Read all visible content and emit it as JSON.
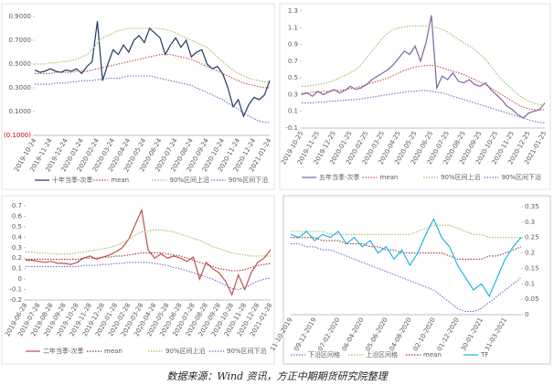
{
  "chart_data": [
    {
      "type": "line",
      "categories": [
        "2019-10-24",
        null,
        null,
        "2019-11-24",
        null,
        null,
        "2019-12-24",
        null,
        null,
        "2020-01-24",
        null,
        null,
        "2020-02-24",
        null,
        null,
        "2020-03-24",
        null,
        null,
        "2020-04-24",
        null,
        null,
        "2020-05-24",
        null,
        null,
        "2020-06-24",
        null,
        null,
        "2020-07-24",
        null,
        null,
        "2020-08-24",
        null,
        null,
        "2020-09-24",
        null,
        null,
        "2020-10-24",
        null,
        null,
        "2020-11-24",
        null,
        null,
        "2020-12-24",
        null,
        null,
        "2021-01-24"
      ],
      "ylim": [
        -0.1,
        0.9
      ],
      "yticks": [
        {
          "value": 0.9,
          "label": "0.9000"
        },
        {
          "value": 0.7,
          "label": "0.7000"
        },
        {
          "value": 0.5,
          "label": "0.5000"
        },
        {
          "value": 0.3,
          "label": "0.3000"
        },
        {
          "value": 0.1,
          "label": "0.1000"
        },
        {
          "value": -0.1,
          "label": "(0.1000)"
        }
      ],
      "negative_tick_color": "#c00000",
      "series": [
        {
          "name": "十年当季-次季",
          "color": "#1f3864",
          "style": "solid",
          "values": [
            0.45,
            0.43,
            0.44,
            0.46,
            0.44,
            0.43,
            0.45,
            0.44,
            0.46,
            0.42,
            0.48,
            0.52,
            0.86,
            0.36,
            0.5,
            0.62,
            0.58,
            0.66,
            0.6,
            0.7,
            0.74,
            0.68,
            0.8,
            0.76,
            0.72,
            0.58,
            0.66,
            0.72,
            0.64,
            0.7,
            0.56,
            0.6,
            0.62,
            0.5,
            0.46,
            0.48,
            0.42,
            0.3,
            0.14,
            0.2,
            0.06,
            0.16,
            0.22,
            0.2,
            0.24,
            0.36
          ]
        },
        {
          "name": "mean",
          "color": "#c0504d",
          "style": "dotted",
          "values": [
            0.42,
            0.42,
            0.42,
            0.42,
            0.43,
            0.43,
            0.43,
            0.43,
            0.44,
            0.44,
            0.44,
            0.45,
            0.46,
            0.47,
            0.48,
            0.49,
            0.5,
            0.51,
            0.52,
            0.53,
            0.54,
            0.55,
            0.56,
            0.57,
            0.58,
            0.58,
            0.58,
            0.57,
            0.56,
            0.55,
            0.54,
            0.52,
            0.5,
            0.48,
            0.46,
            0.44,
            0.42,
            0.4,
            0.38,
            0.36,
            0.34,
            0.33,
            0.32,
            0.31,
            0.3,
            0.3
          ]
        },
        {
          "name": "90%区间上沿",
          "color": "#9bbb59",
          "style": "dotted",
          "values": [
            0.5,
            0.5,
            0.5,
            0.51,
            0.51,
            0.52,
            0.52,
            0.53,
            0.54,
            0.56,
            0.58,
            0.62,
            0.68,
            0.72,
            0.74,
            0.76,
            0.78,
            0.79,
            0.8,
            0.8,
            0.8,
            0.8,
            0.8,
            0.8,
            0.8,
            0.79,
            0.78,
            0.76,
            0.74,
            0.72,
            0.7,
            0.68,
            0.66,
            0.64,
            0.6,
            0.56,
            0.52,
            0.48,
            0.45,
            0.42,
            0.4,
            0.38,
            0.37,
            0.36,
            0.35,
            0.35
          ]
        },
        {
          "name": "90%区间下沿",
          "color": "#7b68c8",
          "style": "dotted",
          "values": [
            0.33,
            0.33,
            0.33,
            0.33,
            0.34,
            0.34,
            0.34,
            0.35,
            0.35,
            0.36,
            0.36,
            0.36,
            0.37,
            0.37,
            0.38,
            0.38,
            0.38,
            0.39,
            0.4,
            0.4,
            0.4,
            0.4,
            0.4,
            0.39,
            0.38,
            0.37,
            0.36,
            0.35,
            0.34,
            0.33,
            0.32,
            0.3,
            0.28,
            0.26,
            0.24,
            0.22,
            0.2,
            0.17,
            0.15,
            0.12,
            0.09,
            0.06,
            0.04,
            0.02,
            0.01,
            0.01
          ]
        }
      ]
    },
    {
      "type": "line",
      "categories": [
        "2019-10-25",
        null,
        null,
        "2019-11-25",
        null,
        null,
        "2019-12-25",
        null,
        null,
        "2020-01-25",
        null,
        null,
        "2020-02-25",
        null,
        null,
        "2020-03-25",
        null,
        null,
        "2020-04-25",
        null,
        null,
        "2020-05-25",
        null,
        null,
        "2020-06-25",
        null,
        null,
        "2020-07-25",
        null,
        null,
        "2020-08-25",
        null,
        null,
        "2020-09-25",
        null,
        null,
        "2020-10-25",
        null,
        null,
        "2020-11-25",
        null,
        null,
        "2020-12-25",
        null,
        null,
        "2021-01-25"
      ],
      "ylim": [
        -0.1,
        1.3
      ],
      "yticks": [
        1.3,
        1.1,
        0.9,
        0.7,
        0.5,
        0.3,
        0.1,
        -0.1
      ],
      "series": [
        {
          "name": "五年当季-次季",
          "color": "#8064a2",
          "style": "solid",
          "values": [
            0.3,
            0.32,
            0.28,
            0.34,
            0.3,
            0.33,
            0.36,
            0.32,
            0.35,
            0.4,
            0.36,
            0.38,
            0.42,
            0.48,
            0.52,
            0.56,
            0.6,
            0.66,
            0.74,
            0.82,
            0.78,
            0.88,
            0.7,
            0.92,
            1.25,
            0.38,
            0.52,
            0.48,
            0.56,
            0.46,
            0.44,
            0.48,
            0.42,
            0.4,
            0.44,
            0.36,
            0.3,
            0.24,
            0.16,
            0.12,
            0.06,
            0.02,
            0.08,
            0.1,
            0.12,
            0.2
          ]
        },
        {
          "name": "mean",
          "color": "#c0504d",
          "style": "dotted",
          "values": [
            0.32,
            0.32,
            0.33,
            0.33,
            0.34,
            0.34,
            0.35,
            0.35,
            0.36,
            0.37,
            0.38,
            0.4,
            0.42,
            0.44,
            0.46,
            0.48,
            0.5,
            0.53,
            0.56,
            0.59,
            0.61,
            0.63,
            0.64,
            0.65,
            0.65,
            0.64,
            0.62,
            0.6,
            0.58,
            0.56,
            0.54,
            0.51,
            0.48,
            0.45,
            0.42,
            0.38,
            0.34,
            0.3,
            0.26,
            0.22,
            0.18,
            0.15,
            0.13,
            0.12,
            0.12,
            0.12
          ]
        },
        {
          "name": "90%区间上沿",
          "color": "#9bbb59",
          "style": "dotted",
          "values": [
            0.4,
            0.4,
            0.41,
            0.42,
            0.43,
            0.45,
            0.47,
            0.5,
            0.53,
            0.56,
            0.6,
            0.66,
            0.74,
            0.82,
            0.9,
            0.98,
            1.04,
            1.08,
            1.1,
            1.11,
            1.12,
            1.12,
            1.12,
            1.12,
            1.11,
            1.1,
            1.08,
            1.05,
            1.0,
            0.96,
            0.92,
            0.88,
            0.84,
            0.78,
            0.72,
            0.64,
            0.56,
            0.48,
            0.42,
            0.36,
            0.3,
            0.26,
            0.22,
            0.2,
            0.18,
            0.18
          ]
        },
        {
          "name": "90%区间下沿",
          "color": "#7b68c8",
          "style": "dotted",
          "values": [
            0.2,
            0.2,
            0.2,
            0.21,
            0.21,
            0.22,
            0.22,
            0.23,
            0.23,
            0.24,
            0.24,
            0.25,
            0.26,
            0.27,
            0.28,
            0.29,
            0.3,
            0.31,
            0.32,
            0.33,
            0.34,
            0.34,
            0.35,
            0.35,
            0.34,
            0.33,
            0.32,
            0.3,
            0.28,
            0.26,
            0.24,
            0.22,
            0.2,
            0.18,
            0.16,
            0.14,
            0.12,
            0.1,
            0.08,
            0.06,
            0.04,
            0.02,
            0.0,
            -0.02,
            -0.03,
            -0.04
          ]
        }
      ]
    },
    {
      "type": "line",
      "categories": [
        "2019-06-28",
        null,
        "2019-07-28",
        null,
        "2019-08-28",
        null,
        "2019-09-28",
        null,
        "2019-10-28",
        null,
        "2019-11-28",
        null,
        "2019-12-28",
        null,
        "2020-01-28",
        null,
        "2020-02-28",
        null,
        "2020-03-28",
        null,
        "2020-04-28",
        null,
        "2020-05-28",
        null,
        "2020-06-28",
        null,
        "2020-07-28",
        null,
        "2020-08-28",
        null,
        "2020-09-28",
        null,
        "2020-10-28",
        null,
        "2020-11-28",
        null,
        "2020-12-28",
        null,
        "2021-01-28"
      ],
      "ylim": [
        -0.2,
        0.7
      ],
      "yticks": [
        0.7,
        0.6,
        0.5,
        0.4,
        0.3,
        0.2,
        0.1,
        0,
        -0.1,
        -0.2
      ],
      "series": [
        {
          "name": "二年当季-次季",
          "color": "#c0504d",
          "style": "solid",
          "values": [
            0.18,
            0.18,
            0.17,
            0.16,
            0.17,
            0.15,
            0.15,
            0.14,
            0.16,
            0.2,
            0.22,
            0.19,
            0.21,
            0.23,
            0.26,
            0.3,
            0.38,
            0.52,
            0.66,
            0.28,
            0.2,
            0.24,
            0.2,
            0.22,
            0.2,
            0.17,
            0.21,
            0.0,
            0.16,
            0.1,
            0.06,
            -0.02,
            -0.15,
            0.04,
            -0.1,
            0.06,
            0.16,
            0.2,
            0.28
          ]
        },
        {
          "name": "mean",
          "color": "#943634",
          "style": "dotted",
          "values": [
            0.19,
            0.19,
            0.19,
            0.19,
            0.19,
            0.19,
            0.19,
            0.19,
            0.19,
            0.2,
            0.2,
            0.2,
            0.21,
            0.21,
            0.22,
            0.22,
            0.23,
            0.24,
            0.25,
            0.25,
            0.25,
            0.25,
            0.24,
            0.23,
            0.22,
            0.2,
            0.18,
            0.16,
            0.14,
            0.12,
            0.1,
            0.09,
            0.08,
            0.08,
            0.09,
            0.11,
            0.13,
            0.14,
            0.15
          ]
        },
        {
          "name": "90%区间上沿",
          "color": "#9bbb59",
          "style": "dotted",
          "values": [
            0.26,
            0.26,
            0.25,
            0.25,
            0.24,
            0.24,
            0.24,
            0.24,
            0.25,
            0.26,
            0.27,
            0.28,
            0.29,
            0.3,
            0.32,
            0.35,
            0.38,
            0.42,
            0.45,
            0.46,
            0.47,
            0.47,
            0.46,
            0.45,
            0.43,
            0.41,
            0.39,
            0.37,
            0.34,
            0.31,
            0.29,
            0.27,
            0.25,
            0.24,
            0.23,
            0.22,
            0.22,
            0.22,
            0.22
          ]
        },
        {
          "name": "90%区间下沿",
          "color": "#7b68c8",
          "style": "dotted",
          "values": [
            0.12,
            0.12,
            0.12,
            0.12,
            0.12,
            0.12,
            0.12,
            0.12,
            0.12,
            0.13,
            0.13,
            0.13,
            0.14,
            0.14,
            0.15,
            0.15,
            0.16,
            0.16,
            0.16,
            0.16,
            0.15,
            0.14,
            0.13,
            0.11,
            0.1,
            0.08,
            0.06,
            0.04,
            0.02,
            0.0,
            -0.03,
            -0.06,
            -0.09,
            -0.1,
            -0.08,
            -0.05,
            -0.02,
            0.0,
            0.01
          ]
        }
      ]
    },
    {
      "type": "line",
      "categories": [
        "11-10-2019",
        null,
        null,
        "09-12-2019",
        null,
        null,
        "07-02-2020",
        null,
        null,
        "06-04-2020",
        null,
        null,
        "05-06-2020",
        null,
        null,
        "04-08-2020",
        null,
        null,
        "02-10-2020",
        null,
        null,
        "01-12-2020",
        null,
        null,
        "30-01-2021",
        null,
        null,
        "31-03-2021",
        null,
        null
      ],
      "ylim": [
        0,
        0.35
      ],
      "yticks": [
        0.35,
        0.3,
        0.25,
        0.2,
        0.15,
        0.1,
        0.05,
        0
      ],
      "yaxis_side": "right",
      "series": [
        {
          "name": "下沿区间格",
          "color": "#7b68c8",
          "style": "dotted",
          "values": [
            0.23,
            0.23,
            0.22,
            0.22,
            0.21,
            0.21,
            0.2,
            0.19,
            0.18,
            0.17,
            0.16,
            0.15,
            0.14,
            0.13,
            0.12,
            0.11,
            0.1,
            0.09,
            0.08,
            0.06,
            0.04,
            0.02,
            0.01,
            0.01,
            0.02,
            0.04,
            0.06,
            0.08,
            0.1,
            0.12
          ]
        },
        {
          "name": "上沿区间格",
          "color": "#9bbb59",
          "style": "dotted",
          "values": [
            0.27,
            0.27,
            0.27,
            0.27,
            0.27,
            0.26,
            0.26,
            0.26,
            0.26,
            0.26,
            0.26,
            0.26,
            0.26,
            0.26,
            0.26,
            0.26,
            0.27,
            0.28,
            0.29,
            0.29,
            0.29,
            0.28,
            0.27,
            0.26,
            0.26,
            0.25,
            0.25,
            0.25,
            0.25,
            0.25
          ]
        },
        {
          "name": "mean",
          "color": "#943634",
          "style": "dotted",
          "values": [
            0.25,
            0.25,
            0.25,
            0.25,
            0.24,
            0.24,
            0.24,
            0.23,
            0.23,
            0.23,
            0.22,
            0.22,
            0.21,
            0.21,
            0.2,
            0.2,
            0.2,
            0.2,
            0.2,
            0.2,
            0.19,
            0.18,
            0.18,
            0.18,
            0.18,
            0.19,
            0.19,
            0.2,
            0.21,
            0.22
          ]
        },
        {
          "name": "TF",
          "color": "#1fb4e6",
          "style": "solid",
          "values": [
            0.26,
            0.25,
            0.27,
            0.24,
            0.26,
            0.25,
            0.27,
            0.23,
            0.25,
            0.22,
            0.24,
            0.2,
            0.22,
            0.18,
            0.21,
            0.16,
            0.2,
            0.26,
            0.31,
            0.25,
            0.22,
            0.16,
            0.12,
            0.08,
            0.1,
            0.06,
            0.12,
            0.18,
            0.22,
            0.25
          ]
        }
      ]
    }
  ],
  "caption": "数据来源：Wind 资讯，方正中期期货研究院整理"
}
